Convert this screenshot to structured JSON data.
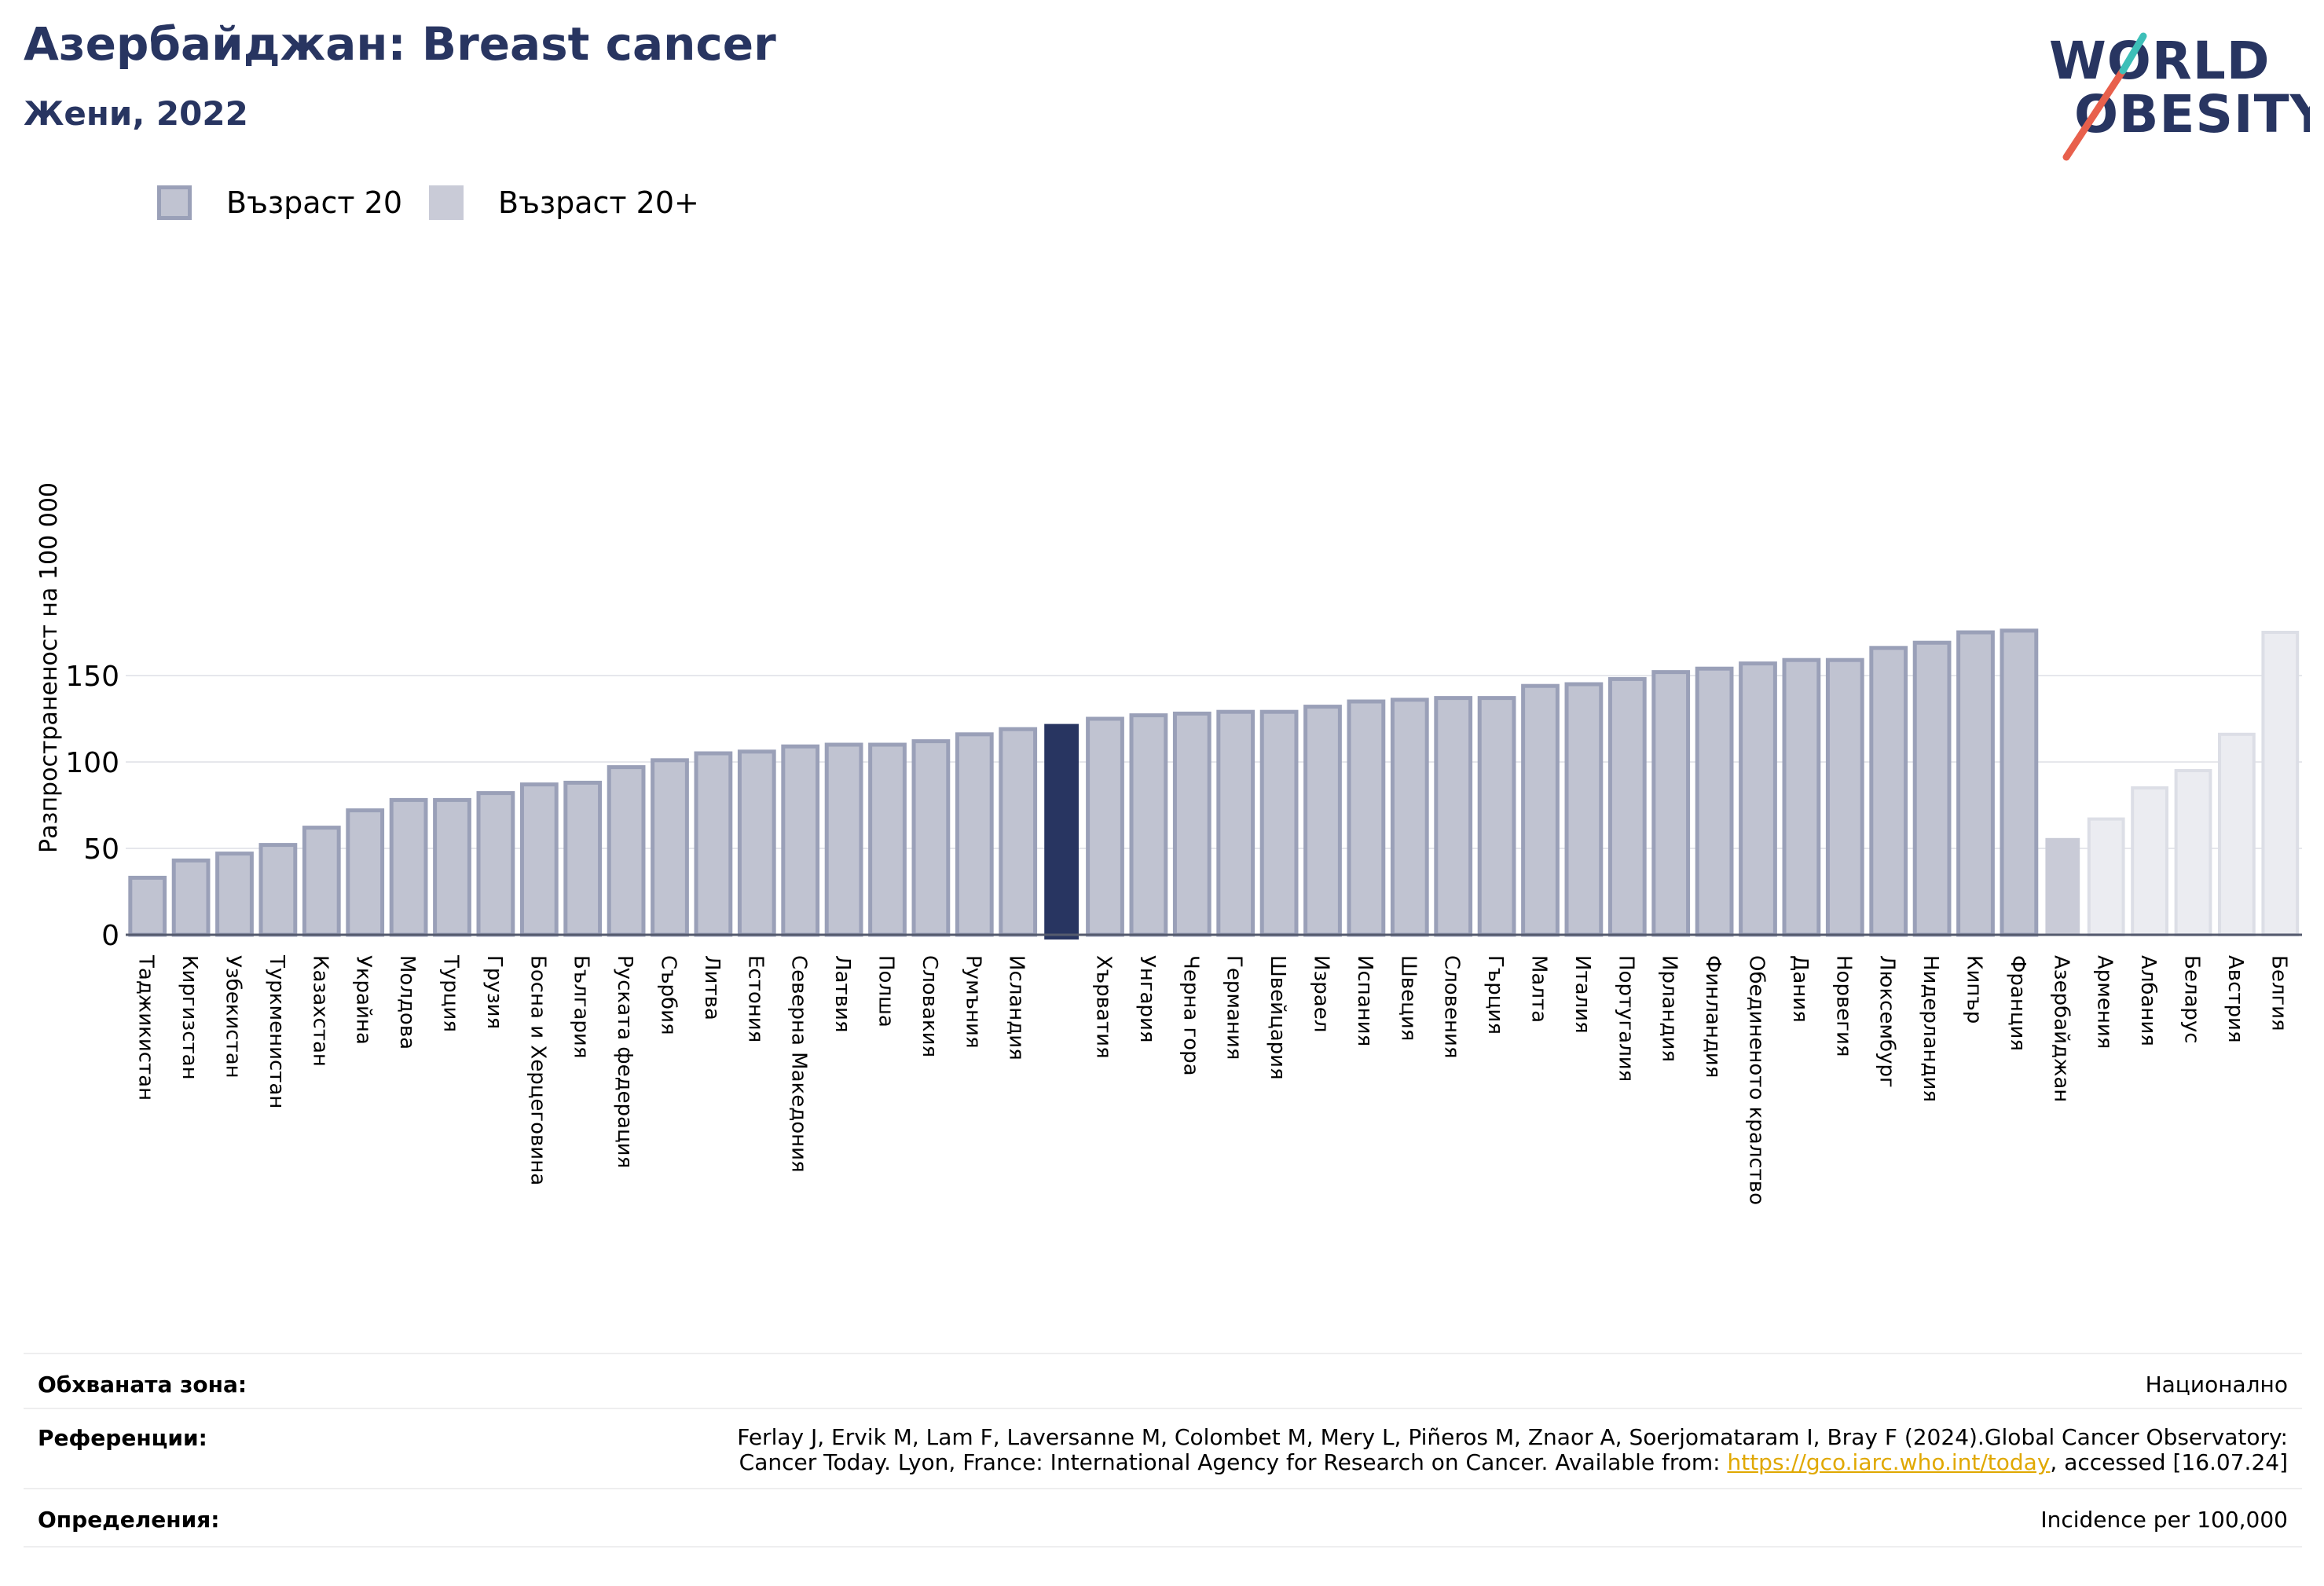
{
  "header": {
    "title": "Азербайджан: Breast cancer",
    "subtitle": "Жени, 2022"
  },
  "logo": {
    "line1": "WORLD",
    "line2": "OBESITY"
  },
  "legend": {
    "item_a": "Възраст 20",
    "item_b": "Възраст 20+"
  },
  "colors": {
    "bar_default": "#c0c3d1",
    "bar_default_stroke": "#9aa0b8",
    "bar_highlight": "#283561",
    "bar_group2_first": "#c9cbd7",
    "bar_group2": "#ebecf1",
    "bar_group2_stroke": "#dcdee6",
    "title": "#283561",
    "link": "#e0a800",
    "logo_accent_red": "#e8604c",
    "logo_accent_teal": "#3dbfb8"
  },
  "chart_data": {
    "type": "bar",
    "ylabel": "Разпространеност на 100 000",
    "ylim": [
      0,
      185
    ],
    "yticks": [
      0,
      50,
      100,
      150
    ],
    "grid": true,
    "categories": [
      "Таджикистан",
      "Киргизстан",
      "Узбекистан",
      "Туркменистан",
      "Казахстан",
      "Украйна",
      "Молдова",
      "Турция",
      "Грузия",
      "Босна и Херцеговина",
      "България",
      "Руската федерация",
      "Сърбия",
      "Литва",
      "Естония",
      "Северна Македония",
      "Латвия",
      "Полша",
      "Словакия",
      "Румъния",
      "Исландия",
      "",
      "Хърватия",
      "Унгария",
      "Черна гора",
      "Германия",
      "Швейцария",
      "Израел",
      "Испания",
      "Швеция",
      "Словения",
      "Гърция",
      "Малта",
      "Италия",
      "Португалия",
      "Ирландия",
      "Финландия",
      "Обединеното кралство",
      "Дания",
      "Норвегия",
      "Люксембург",
      "Нидерландия",
      "Кипър",
      "Франция",
      "Азербайджан",
      "Армения",
      "Албания",
      "Беларус",
      "Австрия",
      "Белгия"
    ],
    "values": [
      33,
      43,
      47,
      52,
      62,
      72,
      78,
      78,
      82,
      87,
      88,
      97,
      101,
      105,
      106,
      109,
      110,
      110,
      112,
      116,
      119,
      122,
      125,
      127,
      128,
      129,
      129,
      132,
      135,
      136,
      137,
      137,
      144,
      145,
      148,
      152,
      154,
      157,
      159,
      159,
      166,
      169,
      175,
      176,
      56,
      67,
      85,
      95,
      116,
      175
    ],
    "series_groups": [
      {
        "name": "Възраст 20",
        "count": 44
      },
      {
        "name": "Възраст 20+",
        "count": 6
      }
    ],
    "highlight_index": 21
  },
  "info": {
    "coverage_label": "Обхваната зона:",
    "coverage_value": "Национално",
    "references_label": "Референции:",
    "references_line1": "Ferlay J, Ervik M, Lam F, Laversanne M, Colombet M, Mery L, Piñeros M, Znaor A, Soerjomataram I, Bray F (2024).Global Cancer Observatory:",
    "references_line2_pre": "Cancer Today. Lyon, France: International Agency for Research on Cancer. Available from: ",
    "references_link": "https://gco.iarc.who.int/today",
    "references_line2_post": ", accessed [16.07.24]",
    "definitions_label": "Определения:",
    "definitions_value": "Incidence per 100,000"
  }
}
